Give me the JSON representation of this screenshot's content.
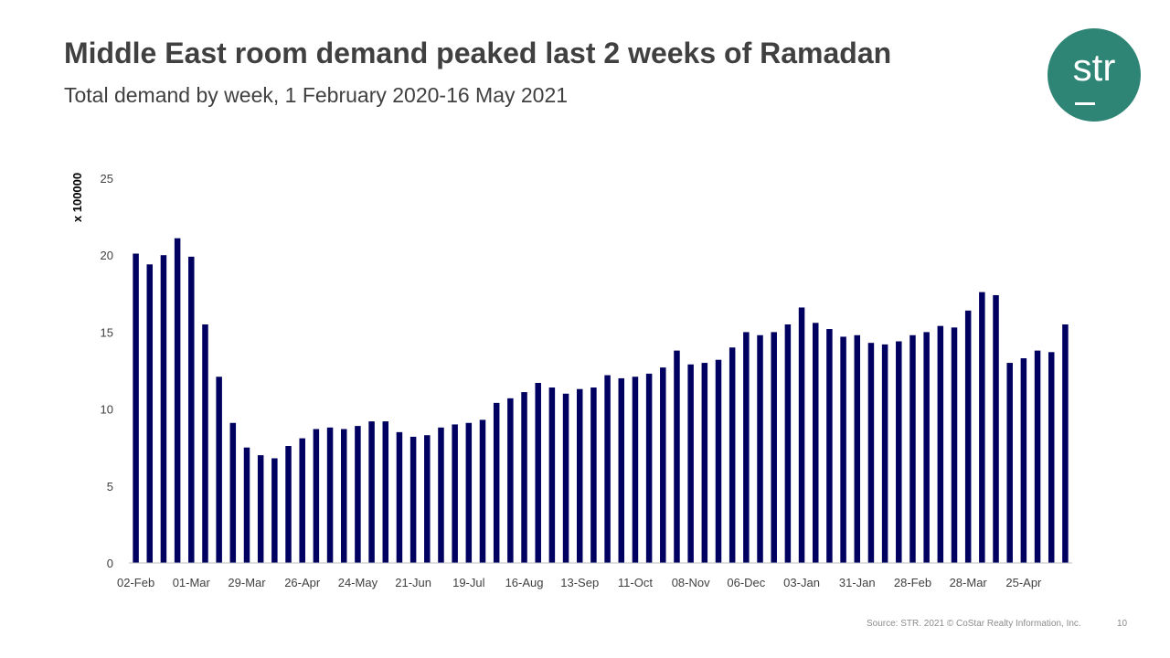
{
  "header": {
    "title": "Middle East room demand peaked last 2 weeks of Ramadan",
    "subtitle": "Total demand by week, 1 February 2020-16 May 2021"
  },
  "logo": {
    "text": "str",
    "color": "#2e8575"
  },
  "footer": {
    "source": "Source: STR. 2021 © CoStar Realty Information, Inc.",
    "page": "10"
  },
  "chart_data": {
    "type": "bar",
    "title": "",
    "xlabel": "",
    "ylabel": "x 100000",
    "ylim": [
      0,
      25
    ],
    "yticks": [
      "0",
      "5",
      "10",
      "15",
      "20",
      "25"
    ],
    "grid": false,
    "bar_color": "#000060",
    "x_tick_labels": [
      "02-Feb",
      "01-Mar",
      "29-Mar",
      "26-Apr",
      "24-May",
      "21-Jun",
      "19-Jul",
      "16-Aug",
      "13-Sep",
      "11-Oct",
      "08-Nov",
      "06-Dec",
      "03-Jan",
      "31-Jan",
      "28-Feb",
      "28-Mar",
      "25-Apr"
    ],
    "values": [
      20.1,
      19.4,
      20.0,
      21.1,
      19.9,
      15.5,
      12.1,
      9.1,
      7.5,
      7.0,
      6.8,
      7.6,
      8.1,
      8.7,
      8.8,
      8.7,
      8.9,
      9.2,
      9.2,
      8.5,
      8.2,
      8.3,
      8.8,
      9.0,
      9.1,
      9.3,
      10.4,
      10.7,
      11.1,
      11.7,
      11.4,
      11.0,
      11.3,
      11.4,
      12.2,
      12.0,
      12.1,
      12.3,
      12.7,
      13.8,
      12.9,
      13.0,
      13.2,
      14.0,
      15.0,
      14.8,
      15.0,
      15.5,
      16.6,
      15.6,
      15.2,
      14.7,
      14.8,
      14.3,
      14.2,
      14.4,
      14.8,
      15.0,
      15.4,
      15.3,
      16.4,
      17.6,
      17.4,
      13.0,
      13.3,
      13.8,
      13.7,
      15.5
    ]
  }
}
